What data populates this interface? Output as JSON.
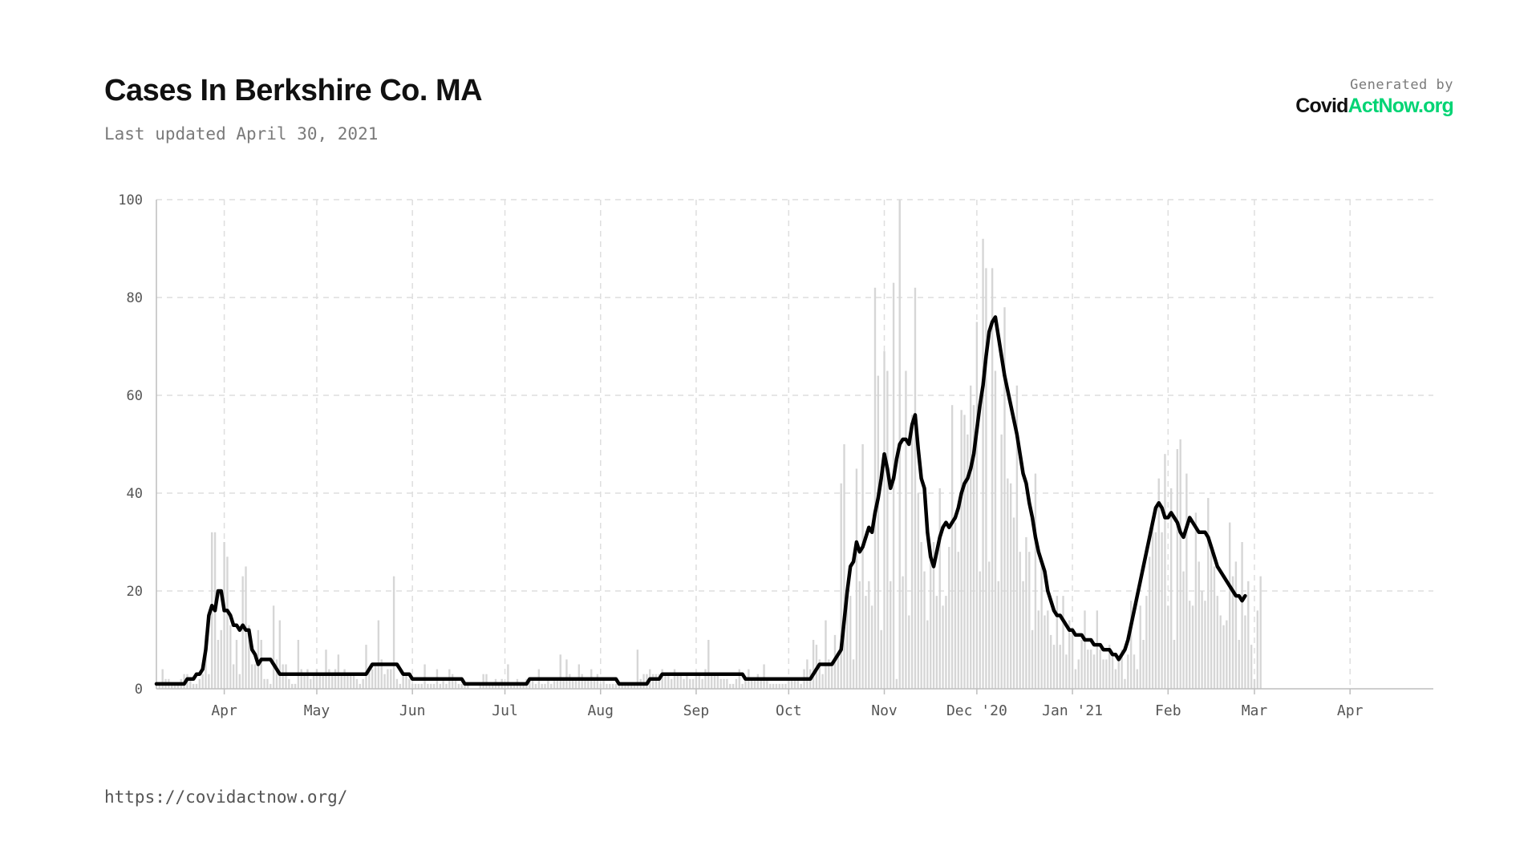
{
  "header": {
    "title": "Cases In Berkshire Co. MA",
    "subtitle": "Last updated April 30, 2021"
  },
  "branding": {
    "generated_by": "Generated by",
    "logo_part1": "Covid",
    "logo_part2": "ActNow.org",
    "logo_color_dark": "#111111",
    "logo_color_accent": "#00d474"
  },
  "footer": {
    "url": "https://covidactnow.org/"
  },
  "chart_data": {
    "type": "bar",
    "title": "Cases In Berkshire Co. MA",
    "xlabel": "",
    "ylabel": "",
    "ylim": [
      0,
      100
    ],
    "y_ticks": [
      0,
      20,
      40,
      60,
      80,
      100
    ],
    "grid": true,
    "bar_color": "#d6d6d6",
    "line_color": "#000000",
    "x_start_date": "2020-03-10",
    "x_end_date": "2021-04-28",
    "x_ticks": [
      {
        "date": "2020-04-01",
        "label": "Apr"
      },
      {
        "date": "2020-05-01",
        "label": "May"
      },
      {
        "date": "2020-06-01",
        "label": "Jun"
      },
      {
        "date": "2020-07-01",
        "label": "Jul"
      },
      {
        "date": "2020-08-01",
        "label": "Aug"
      },
      {
        "date": "2020-09-01",
        "label": "Sep"
      },
      {
        "date": "2020-10-01",
        "label": "Oct"
      },
      {
        "date": "2020-11-01",
        "label": "Nov"
      },
      {
        "date": "2020-12-01",
        "label": "Dec '20"
      },
      {
        "date": "2021-01-01",
        "label": "Jan '21"
      },
      {
        "date": "2021-02-01",
        "label": "Feb"
      },
      {
        "date": "2021-03-01",
        "label": "Mar"
      },
      {
        "date": "2021-04-01",
        "label": "Apr"
      }
    ],
    "series": [
      {
        "type": "bar",
        "values": [
          0,
          1,
          4,
          2,
          2,
          1,
          1,
          1,
          2,
          3,
          3,
          2,
          1,
          1,
          2,
          3,
          11,
          3,
          32,
          32,
          10,
          12,
          30,
          27,
          13,
          5,
          10,
          3,
          23,
          25,
          13,
          5,
          5,
          12,
          10,
          2,
          2,
          1,
          17,
          6,
          14,
          5,
          5,
          2,
          1,
          1,
          10,
          4,
          3,
          4,
          2,
          3,
          4,
          3,
          3,
          8,
          4,
          3,
          4,
          7,
          3,
          4,
          3,
          3,
          3,
          2,
          1,
          2,
          9,
          4,
          4,
          5,
          14,
          6,
          3,
          4,
          4,
          23,
          2,
          1,
          3,
          3,
          2,
          1,
          1,
          1,
          1,
          5,
          1,
          1,
          1,
          4,
          1,
          2,
          1,
          4,
          3,
          2,
          1,
          1,
          1,
          1,
          0,
          0,
          0,
          1,
          3,
          3,
          1,
          1,
          2,
          1,
          2,
          1,
          5,
          1,
          1,
          2,
          1,
          1,
          2,
          2,
          2,
          1,
          4,
          1,
          1,
          2,
          1,
          2,
          2,
          7,
          2,
          6,
          3,
          2,
          2,
          5,
          3,
          2,
          2,
          4,
          2,
          3,
          1,
          2,
          1,
          1,
          1,
          1,
          1,
          1,
          1,
          1,
          1,
          1,
          8,
          2,
          3,
          3,
          4,
          3,
          3,
          3,
          4,
          3,
          3,
          2,
          4,
          3,
          3,
          2,
          3,
          2,
          2,
          3,
          3,
          2,
          4,
          10,
          3,
          3,
          3,
          2,
          2,
          2,
          1,
          1,
          2,
          4,
          1,
          2,
          4,
          2,
          2,
          3,
          2,
          5,
          2,
          1,
          1,
          1,
          1,
          1,
          1,
          2,
          2,
          2,
          2,
          1,
          4,
          6,
          4,
          10,
          9,
          6,
          3,
          14,
          6,
          5,
          11,
          7,
          42,
          50,
          20,
          19,
          6,
          45,
          22,
          50,
          19,
          22,
          17,
          82,
          64,
          12,
          69,
          65,
          22,
          83,
          2,
          100,
          23,
          65,
          15,
          56,
          82,
          40,
          30,
          24,
          14,
          28,
          30,
          19,
          41,
          17,
          19,
          29,
          58,
          34,
          28,
          57,
          56,
          52,
          62,
          58,
          75,
          24,
          92,
          86,
          26,
          86,
          65,
          22,
          52,
          78,
          43,
          42,
          35,
          62,
          28,
          22,
          31,
          28,
          12,
          44,
          16,
          26,
          15,
          16,
          11,
          9,
          19,
          9,
          19,
          7,
          14,
          12,
          4,
          6,
          10,
          16,
          8,
          8,
          7,
          16,
          8,
          6,
          6,
          9,
          7,
          4,
          6,
          8,
          2,
          7,
          18,
          7,
          4,
          17,
          10,
          19,
          27,
          34,
          32,
          43,
          32,
          48,
          17,
          41,
          10,
          49,
          51,
          24,
          44,
          18,
          17,
          36,
          26,
          20,
          18,
          39,
          29,
          25,
          19,
          15,
          13,
          14,
          34,
          23,
          26,
          10,
          30,
          15,
          22,
          9,
          2,
          16,
          23
        ]
      },
      {
        "type": "line",
        "values": [
          1,
          1,
          1,
          1,
          1,
          1,
          1,
          1,
          1,
          1,
          2,
          2,
          2,
          3,
          3,
          4,
          8,
          15,
          17,
          16,
          20,
          20,
          16,
          16,
          15,
          13,
          13,
          12,
          13,
          12,
          12,
          8,
          7,
          5,
          6,
          6,
          6,
          6,
          5,
          4,
          3,
          3,
          3,
          3,
          3,
          3,
          3,
          3,
          3,
          3,
          3,
          3,
          3,
          3,
          3,
          3,
          3,
          3,
          3,
          3,
          3,
          3,
          3,
          3,
          3,
          3,
          3,
          3,
          3,
          4,
          5,
          5,
          5,
          5,
          5,
          5,
          5,
          5,
          5,
          4,
          3,
          3,
          3,
          2,
          2,
          2,
          2,
          2,
          2,
          2,
          2,
          2,
          2,
          2,
          2,
          2,
          2,
          2,
          2,
          2,
          1,
          1,
          1,
          1,
          1,
          1,
          1,
          1,
          1,
          1,
          1,
          1,
          1,
          1,
          1,
          1,
          1,
          1,
          1,
          1,
          1,
          2,
          2,
          2,
          2,
          2,
          2,
          2,
          2,
          2,
          2,
          2,
          2,
          2,
          2,
          2,
          2,
          2,
          2,
          2,
          2,
          2,
          2,
          2,
          2,
          2,
          2,
          2,
          2,
          2,
          1,
          1,
          1,
          1,
          1,
          1,
          1,
          1,
          1,
          1,
          2,
          2,
          2,
          2,
          3,
          3,
          3,
          3,
          3,
          3,
          3,
          3,
          3,
          3,
          3,
          3,
          3,
          3,
          3,
          3,
          3,
          3,
          3,
          3,
          3,
          3,
          3,
          3,
          3,
          3,
          3,
          2,
          2,
          2,
          2,
          2,
          2,
          2,
          2,
          2,
          2,
          2,
          2,
          2,
          2,
          2,
          2,
          2,
          2,
          2,
          2,
          2,
          2,
          3,
          4,
          5,
          5,
          5,
          5,
          5,
          6,
          7,
          8,
          14,
          20,
          25,
          26,
          30,
          28,
          29,
          31,
          33,
          32,
          36,
          39,
          43,
          48,
          45,
          41,
          43,
          47,
          50,
          51,
          51,
          50,
          54,
          56,
          49,
          43,
          41,
          32,
          27,
          25,
          28,
          31,
          33,
          34,
          33,
          34,
          35,
          37,
          40,
          42,
          43,
          45,
          48,
          53,
          58,
          62,
          68,
          73,
          75,
          76,
          72,
          68,
          64,
          61,
          58,
          55,
          52,
          48,
          44,
          42,
          38,
          35,
          31,
          28,
          26,
          24,
          20,
          18,
          16,
          15,
          15,
          14,
          13,
          12,
          12,
          11,
          11,
          11,
          10,
          10,
          10,
          9,
          9,
          9,
          8,
          8,
          8,
          7,
          7,
          6,
          7,
          8,
          10,
          13,
          16,
          19,
          22,
          25,
          28,
          31,
          34,
          37,
          38,
          37,
          35,
          35,
          36,
          35,
          34,
          32,
          31,
          33,
          35,
          34,
          33,
          32,
          32,
          32,
          31,
          29,
          27,
          25,
          24,
          23,
          22,
          21,
          20,
          19,
          19,
          18,
          19
        ]
      }
    ]
  }
}
